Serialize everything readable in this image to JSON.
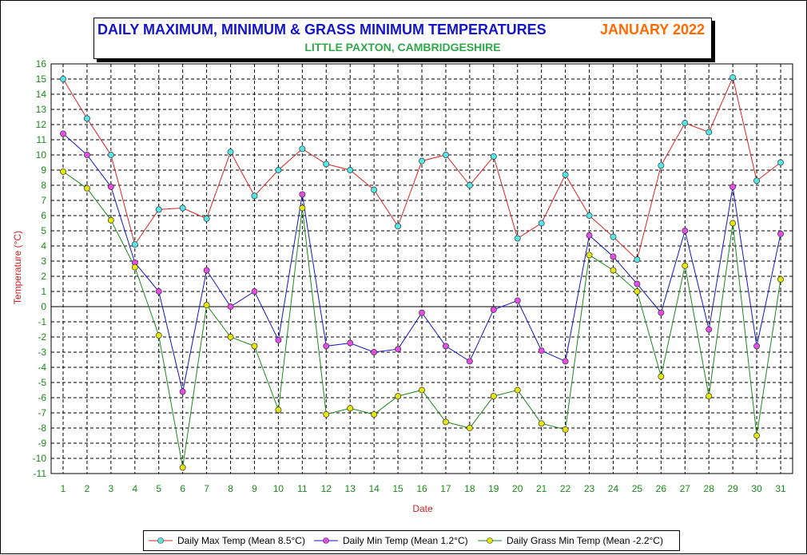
{
  "title": "DAILY MAXIMUM, MINIMUM & GRASS MINIMUM TEMPERATURES",
  "title_date": "JANUARY 2022",
  "subtitle": "LITTLE PAXTON, CAMBRIDGESHIRE",
  "colors": {
    "title": "#1414c8",
    "title_date": "#ff6a00",
    "subtitle": "#2ea84a",
    "axis_label": "#cc2222",
    "tick_label": "#1a8a1a",
    "max_line": "#dd2222",
    "max_marker": "#55e8e8",
    "min_line": "#1414c8",
    "min_marker": "#e64ce6",
    "grass_line": "#1a8a1a",
    "grass_marker": "#e6e60a"
  },
  "chart_data": {
    "type": "line",
    "title": "DAILY MAXIMUM, MINIMUM & GRASS MINIMUM TEMPERATURES",
    "xlabel": "Date",
    "ylabel": "Temperature (°C)",
    "ylim": [
      -11,
      16
    ],
    "xlim": [
      1,
      31
    ],
    "grid": true,
    "legend_position": "bottom",
    "x": [
      1,
      2,
      3,
      4,
      5,
      6,
      7,
      8,
      9,
      10,
      11,
      12,
      13,
      14,
      15,
      16,
      17,
      18,
      19,
      20,
      21,
      22,
      23,
      24,
      25,
      26,
      27,
      28,
      29,
      30,
      31
    ],
    "yticks": [
      16,
      15,
      14,
      13,
      12,
      11,
      10,
      9,
      8,
      7,
      6,
      5,
      4,
      3,
      2,
      1,
      0,
      -1,
      -2,
      -3,
      -4,
      -5,
      -6,
      -7,
      -8,
      -9,
      -10,
      -11
    ],
    "series": [
      {
        "name": "Daily Max Temp (Mean 8.5°C)",
        "values": [
          15.0,
          12.4,
          10.0,
          4.1,
          6.4,
          6.5,
          5.8,
          10.2,
          7.3,
          9.0,
          10.4,
          9.4,
          9.0,
          7.7,
          5.3,
          9.6,
          10.0,
          8.0,
          9.9,
          4.5,
          5.5,
          8.7,
          6.0,
          4.6,
          3.1,
          9.3,
          12.1,
          11.5,
          15.1,
          8.3,
          9.5
        ]
      },
      {
        "name": "Daily Min Temp (Mean 1.2°C)",
        "values": [
          11.4,
          10.0,
          7.9,
          2.9,
          1.0,
          -5.6,
          2.4,
          0.0,
          1.0,
          -2.2,
          7.4,
          -2.6,
          -2.4,
          -3.0,
          -2.8,
          -0.4,
          -2.6,
          -3.6,
          -0.2,
          0.4,
          -2.9,
          -3.6,
          4.7,
          3.3,
          1.5,
          -0.4,
          5.0,
          -1.5,
          7.9,
          -2.6,
          4.8
        ]
      },
      {
        "name": "Daily Grass Min Temp (Mean -2.2°C)",
        "values": [
          8.9,
          7.8,
          5.7,
          2.6,
          -1.9,
          -10.6,
          0.1,
          -2.0,
          -2.6,
          -6.8,
          6.5,
          -7.1,
          -6.7,
          -7.1,
          -5.9,
          -5.5,
          -7.6,
          -8.0,
          -5.9,
          -5.5,
          -7.7,
          -8.1,
          3.4,
          2.4,
          1.0,
          -4.6,
          2.7,
          -5.9,
          5.5,
          -8.5,
          1.8
        ]
      }
    ]
  }
}
